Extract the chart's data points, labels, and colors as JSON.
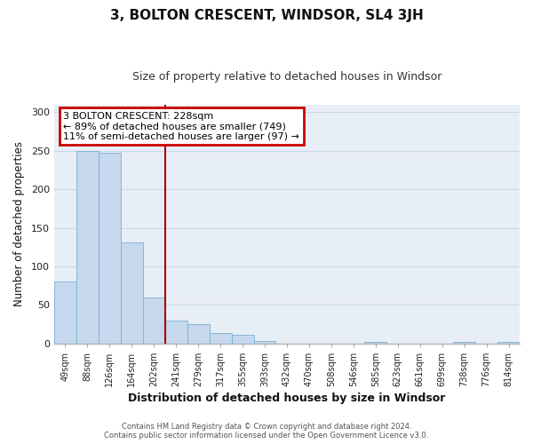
{
  "title": "3, BOLTON CRESCENT, WINDSOR, SL4 3JH",
  "subtitle": "Size of property relative to detached houses in Windsor",
  "xlabel": "Distribution of detached houses by size in Windsor",
  "ylabel": "Number of detached properties",
  "bar_labels": [
    "49sqm",
    "88sqm",
    "126sqm",
    "164sqm",
    "202sqm",
    "241sqm",
    "279sqm",
    "317sqm",
    "355sqm",
    "393sqm",
    "432sqm",
    "470sqm",
    "508sqm",
    "546sqm",
    "585sqm",
    "623sqm",
    "661sqm",
    "699sqm",
    "738sqm",
    "776sqm",
    "814sqm"
  ],
  "bar_values": [
    80,
    250,
    247,
    131,
    60,
    30,
    25,
    14,
    11,
    3,
    0,
    0,
    0,
    0,
    2,
    0,
    0,
    0,
    2,
    0,
    2
  ],
  "bar_color": "#c5d8ed",
  "bar_edge_color": "#7bafd4",
  "grid_color": "#c8d8ec",
  "background_color": "#e8eef6",
  "vline_color": "#aa0000",
  "annotation_title": "3 BOLTON CRESCENT: 228sqm",
  "annotation_line1": "← 89% of detached houses are smaller (749)",
  "annotation_line2": "11% of semi-detached houses are larger (97) →",
  "annotation_box_edge_color": "#cc0000",
  "ylim": [
    0,
    310
  ],
  "yticks": [
    0,
    50,
    100,
    150,
    200,
    250,
    300
  ],
  "footer1": "Contains HM Land Registry data © Crown copyright and database right 2024.",
  "footer2": "Contains public sector information licensed under the Open Government Licence v3.0."
}
